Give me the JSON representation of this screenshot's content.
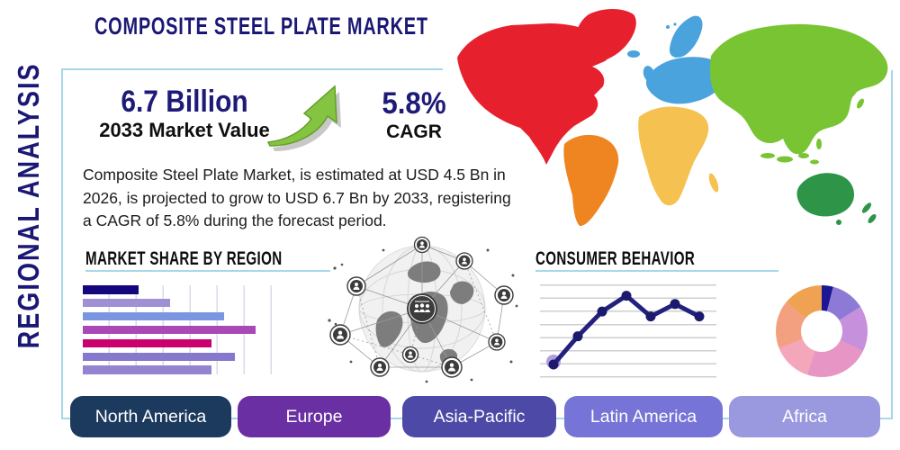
{
  "sidebar": {
    "label": "REGIONAL ANALYSIS"
  },
  "header": {
    "title": "COMPOSITE STEEL PLATE MARKET"
  },
  "stats": {
    "market_value": {
      "value": "6.7 Billion",
      "label": "2033 Market Value"
    },
    "cagr": {
      "value": "5.8%",
      "label": "CAGR"
    }
  },
  "description": "Composite Steel Plate Market, is estimated at USD 4.5 Bn in 2026, is projected to grow to USD 6.7 Bn by 2033, registering a CAGR of 5.8% during the forecast period.",
  "sections": {
    "market_share": {
      "title": "MARKET SHARE BY REGION"
    },
    "consumer_behavior": {
      "title": "CONSUMER BEHAVIOR"
    }
  },
  "region_buttons": [
    {
      "label": "North America",
      "color": "#1b3a5e"
    },
    {
      "label": "Europe",
      "color": "#6b2fa4"
    },
    {
      "label": "Asia-Pacific",
      "color": "#4c49a7"
    },
    {
      "label": "Latin America",
      "color": "#7674d6"
    },
    {
      "label": "Africa",
      "color": "#9a99e0"
    }
  ],
  "map": {
    "regions": [
      {
        "name": "north-america",
        "color": "#e6212d"
      },
      {
        "name": "south-america",
        "color": "#ee8520"
      },
      {
        "name": "europe",
        "color": "#4aa3dc"
      },
      {
        "name": "africa",
        "color": "#f5c151"
      },
      {
        "name": "asia",
        "color": "#79c433"
      },
      {
        "name": "oceania",
        "color": "#2d9448"
      }
    ]
  },
  "chart_data": [
    {
      "type": "bar",
      "orientation": "horizontal",
      "title": "MARKET SHARE BY REGION",
      "categories": [
        "",
        "",
        "",
        "",
        "",
        "",
        ""
      ],
      "values_pct": [
        27,
        42,
        68,
        83,
        62,
        73,
        62
      ],
      "colors": [
        "#14077e",
        "#9f8fd4",
        "#7b96e0",
        "#a849b6",
        "#c9006e",
        "#8678cc",
        "#9583d2"
      ],
      "xlim": [
        0,
        100
      ],
      "grid": "vertical",
      "axis_labels_visible": false
    },
    {
      "type": "line",
      "title": "CONSUMER BEHAVIOR",
      "x": [
        1,
        2,
        3,
        4,
        5,
        6,
        7
      ],
      "values": [
        12,
        46,
        76,
        95,
        70,
        85,
        70
      ],
      "ylim": [
        0,
        100
      ],
      "line_color": "#23217d",
      "point_color": "#1b1a6e",
      "first_point_halo_color": "#b29de0",
      "grid": "horizontal",
      "axis_labels_visible": false
    },
    {
      "type": "pie",
      "donut": true,
      "title": "",
      "values_pct": [
        4,
        12,
        16,
        23,
        14,
        17,
        14
      ],
      "colors": [
        "#1a1694",
        "#8d7ad6",
        "#c690dc",
        "#e695c5",
        "#f4a6ba",
        "#f3a081",
        "#efa352"
      ]
    }
  ],
  "accents": {
    "frame": "#a5d8e8",
    "navy_text": "#1b1875",
    "arrow_green": "#85c440",
    "arrow_green_dark": "#639f2b"
  }
}
